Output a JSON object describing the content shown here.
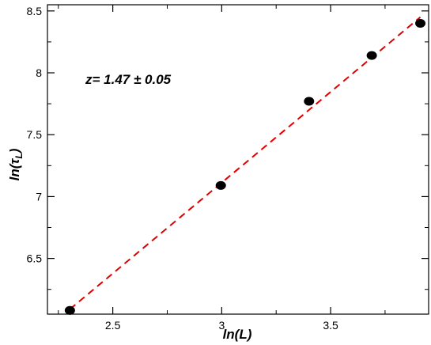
{
  "chart_data": {
    "type": "scatter",
    "xlabel": "ln(L)",
    "ylabel": {
      "base": "ln(",
      "greek": "τ",
      "sub": "L",
      "close": ")"
    },
    "xlim": [
      2.2,
      3.95
    ],
    "ylim": [
      6.05,
      8.55
    ],
    "xticks": [
      2.5,
      3,
      3.5
    ],
    "xtick_labels": [
      "2.5",
      "3",
      "3.5"
    ],
    "yticks": [
      6.5,
      7,
      7.5,
      8,
      8.5
    ],
    "ytick_labels": [
      "6.5",
      "7",
      "7.5",
      "8",
      "8.5"
    ],
    "series": [
      {
        "x": [
          2.303,
          2.996,
          3.401,
          3.689,
          3.912
        ],
        "y": [
          6.08,
          7.09,
          7.77,
          8.14,
          8.4
        ],
        "color": "#000000"
      }
    ],
    "fit_line": {
      "x": [
        2.303,
        3.912
      ],
      "y": [
        6.09,
        8.45
      ],
      "color": "#e00000",
      "style": "dashed"
    },
    "annotation": "z= 1.47 ± 0.05",
    "grid": false,
    "legend": "none"
  }
}
